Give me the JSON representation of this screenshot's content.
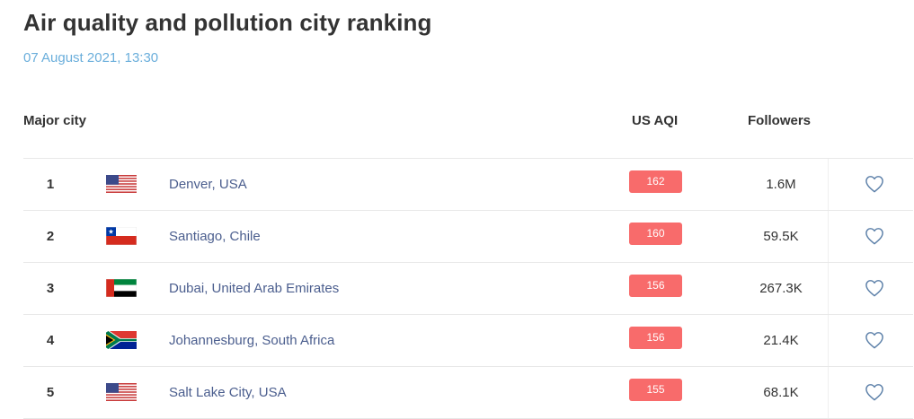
{
  "header": {
    "title": "Air quality and pollution city ranking",
    "timestamp": "07 August 2021, 13:30"
  },
  "table": {
    "columns": {
      "city": "Major city",
      "aqi": "US AQI",
      "followers": "Followers"
    },
    "rows": [
      {
        "rank": "1",
        "flag_icon": "usa-flag-icon",
        "city": "Denver, USA",
        "aqi": "162",
        "followers": "1.6M"
      },
      {
        "rank": "2",
        "flag_icon": "chile-flag-icon",
        "city": "Santiago, Chile",
        "aqi": "160",
        "followers": "59.5K"
      },
      {
        "rank": "3",
        "flag_icon": "uae-flag-icon",
        "city": "Dubai, United Arab Emirates",
        "aqi": "156",
        "followers": "267.3K"
      },
      {
        "rank": "4",
        "flag_icon": "south-africa-flag-icon",
        "city": "Johannesburg, South Africa",
        "aqi": "156",
        "followers": "21.4K"
      },
      {
        "rank": "5",
        "flag_icon": "usa-flag-icon",
        "city": "Salt Lake City, USA",
        "aqi": "155",
        "followers": "68.1K"
      }
    ]
  },
  "colors": {
    "title": "#333333",
    "timestamp": "#6aaedb",
    "city_link": "#4b5e8e",
    "aqi_badge": "#f86b6b",
    "heart_outline": "#5b7fa8",
    "row_divider": "#e8e8e8"
  },
  "icons": {
    "favorite": "heart-outline-icon"
  }
}
